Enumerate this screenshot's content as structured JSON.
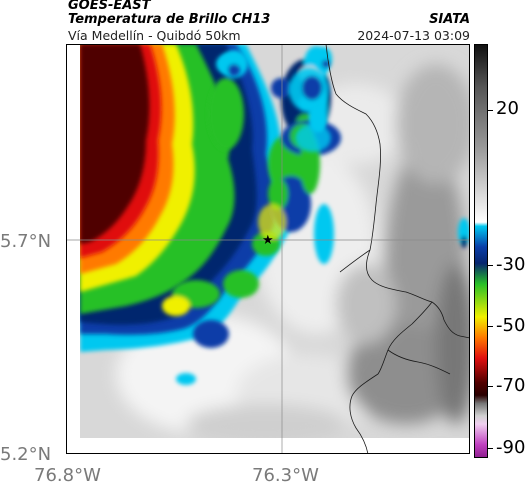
{
  "header": {
    "satellite": "GOES-EAST",
    "product": "Temperatura de Brillo CH13",
    "region": "Vía Medellín - Quibdó 50km",
    "agency": "SIATA",
    "datetime": "2024-07-13 03:09"
  },
  "axes": {
    "lat_ticks": [
      {
        "label": "5.7°N",
        "value": 5.7
      },
      {
        "label": "5.2°N",
        "value": 5.2
      }
    ],
    "lon_ticks": [
      {
        "label": "76.8°W",
        "value": -76.8
      },
      {
        "label": "76.3°W",
        "value": -76.3
      }
    ],
    "gridlines": true
  },
  "colorbar": {
    "units_hint": "",
    "ticks": [
      {
        "label": "20",
        "value": 20
      },
      {
        "label": "-30",
        "value": -30
      },
      {
        "label": "-50",
        "value": -50
      },
      {
        "label": "-70",
        "value": -70
      },
      {
        "label": "-90",
        "value": -90
      }
    ],
    "colors": {
      "warm_low": "#ffffff",
      "warm_high": "#111111",
      "cyan": "#00c8f0",
      "blue": "#0a3ea8",
      "navy": "#06256e",
      "green": "#28c028",
      "yellow": "#f0f000",
      "orange": "#ff7a00",
      "red": "#e01010",
      "darkred": "#500000",
      "magenta": "#c040c0"
    }
  },
  "map": {
    "marker": "star-icon",
    "reference_point": "Vía Medellín - Quibdó"
  }
}
